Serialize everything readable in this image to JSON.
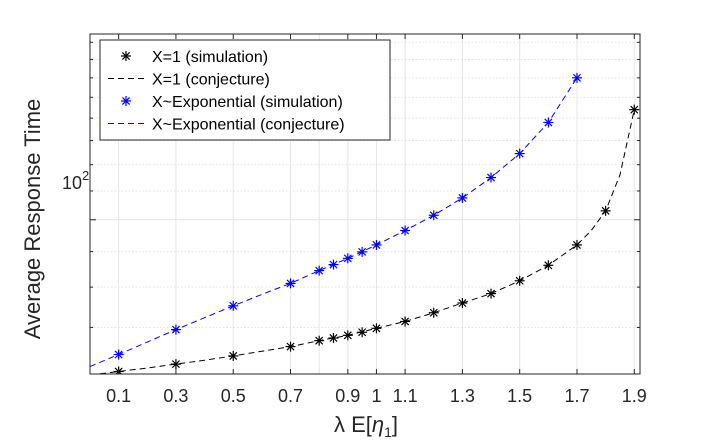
{
  "chart_data": {
    "type": "line",
    "title": "",
    "xlabel_main": "λ E[",
    "xlabel_sym": "η",
    "xlabel_sub": "1",
    "xlabel_close": "]",
    "ylabel": "Average Response Time",
    "yscale": "log",
    "xlim": [
      0.0,
      1.92
    ],
    "ylim": [
      60,
      185
    ],
    "x_ticks": [
      0.1,
      0.3,
      0.5,
      0.7,
      0.9,
      1.0,
      1.1,
      1.3,
      1.5,
      1.7,
      1.9
    ],
    "x_tick_labels": [
      "0.1",
      "0.3",
      "0.5",
      "0.7",
      "0.9",
      "1",
      "1.1",
      "1.3",
      "1.5",
      "1.7",
      "1.9"
    ],
    "x_grid_extra": [
      0.8
    ],
    "y_major_tick_value": 100,
    "y_tick_base": "10",
    "y_tick_exp": "2",
    "y_minor_grid": [
      60,
      70,
      80,
      90,
      100,
      110,
      120,
      130,
      140,
      150,
      160,
      170,
      180
    ],
    "grid": true,
    "legend_position": "top-left",
    "series": [
      {
        "name": "X=1 (simulation)",
        "style": "marker",
        "color": "#000000",
        "x": [
          0.1,
          0.3,
          0.5,
          0.7,
          0.8,
          0.85,
          0.9,
          0.95,
          1.0,
          1.1,
          1.2,
          1.3,
          1.4,
          1.5,
          1.6,
          1.7,
          1.8,
          1.9
        ],
        "y": [
          60.5,
          62.0,
          63.7,
          65.7,
          67.0,
          67.6,
          68.2,
          68.9,
          69.8,
          71.4,
          73.5,
          75.9,
          78.3,
          81.7,
          86.0,
          92.0,
          103.0,
          144.0
        ]
      },
      {
        "name": "X=1 (conjecture)",
        "style": "dashed",
        "color": "#000000",
        "x": [
          0.0,
          0.1,
          0.2,
          0.3,
          0.4,
          0.5,
          0.6,
          0.7,
          0.8,
          0.9,
          1.0,
          1.1,
          1.2,
          1.3,
          1.4,
          1.5,
          1.6,
          1.7,
          1.75,
          1.8,
          1.85,
          1.9
        ],
        "y": [
          59.8,
          60.5,
          61.2,
          62.0,
          62.8,
          63.7,
          64.7,
          65.7,
          67.0,
          68.2,
          69.8,
          71.4,
          73.5,
          75.9,
          78.3,
          81.7,
          86.0,
          92.0,
          96.5,
          103.0,
          116.0,
          144.0
        ]
      },
      {
        "name": "X~Exponential (simulation)",
        "style": "marker",
        "color": "#0000ff",
        "x": [
          0.1,
          0.3,
          0.5,
          0.7,
          0.8,
          0.85,
          0.9,
          0.95,
          1.0,
          1.1,
          1.2,
          1.3,
          1.4,
          1.5,
          1.6,
          1.7
        ],
        "y": [
          64.0,
          69.5,
          75.2,
          81.0,
          84.5,
          86.2,
          88.0,
          89.9,
          92.0,
          96.5,
          101.5,
          107.5,
          115.0,
          124.5,
          138.0,
          160.0
        ]
      },
      {
        "name": "X~Exponential (conjecture)",
        "style": "dashed",
        "color": "#0000ff",
        "x": [
          0.0,
          0.1,
          0.2,
          0.3,
          0.4,
          0.5,
          0.6,
          0.7,
          0.8,
          0.9,
          1.0,
          1.1,
          1.2,
          1.3,
          1.4,
          1.5,
          1.6,
          1.7
        ],
        "y": [
          61.5,
          64.0,
          66.7,
          69.5,
          72.3,
          75.2,
          78.1,
          81.0,
          84.5,
          88.0,
          92.0,
          96.5,
          101.5,
          107.5,
          115.0,
          124.5,
          138.0,
          160.0
        ]
      }
    ]
  }
}
